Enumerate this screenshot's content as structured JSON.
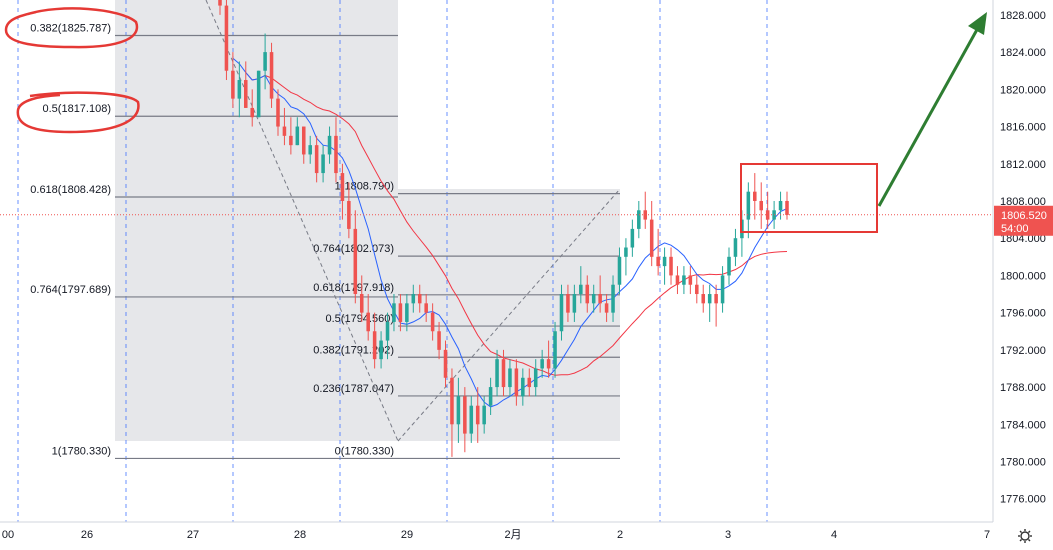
{
  "chart_data": {
    "type": "candlestick",
    "instrument_price_axis": {
      "ticks": [
        1828,
        1824,
        1820,
        1816,
        1812,
        1808,
        1804,
        1800,
        1796,
        1792,
        1788,
        1784,
        1780,
        1776
      ],
      "tick_labels": [
        "1828.000",
        "1824.000",
        "1820.000",
        "1816.000",
        "1812.000",
        "1808.000",
        "1804.000",
        "1800.000",
        "1796.000",
        "1792.000",
        "1788.000",
        "1784.000",
        "1780.000",
        "1776.000"
      ],
      "range": [
        1773.5,
        1829.6
      ]
    },
    "time_axis": {
      "labels": [
        "00",
        "26",
        "27",
        "28",
        "29",
        "2月",
        "2",
        "3",
        "4",
        "7"
      ],
      "session_lines": [
        "26",
        "27",
        "28",
        "29",
        "2月",
        "2",
        "3"
      ]
    },
    "current_price": {
      "value": 1806.52,
      "label": "1806.520",
      "countdown": "54:00"
    },
    "fib_left": {
      "levels": [
        {
          "ratio": "0.382",
          "price": 1825.787,
          "label": "0.382(1825.787)"
        },
        {
          "ratio": "0.5",
          "price": 1817.108,
          "label": "0.5(1817.108)"
        },
        {
          "ratio": "0.618",
          "price": 1808.428,
          "label": "0.618(1808.428)"
        },
        {
          "ratio": "0.764",
          "price": 1797.689,
          "label": "0.764(1797.689)"
        },
        {
          "ratio": "1",
          "price": 1780.33,
          "label": "1(1780.330)"
        }
      ]
    },
    "fib_right": {
      "levels": [
        {
          "ratio": "1",
          "price": 1808.79,
          "label": "1(1808.790)"
        },
        {
          "ratio": "0.764",
          "price": 1802.073,
          "label": "0.764(1802.073)"
        },
        {
          "ratio": "0.618",
          "price": 1797.918,
          "label": "0.618(1797.918)"
        },
        {
          "ratio": "0.5",
          "price": 1794.56,
          "label": "0.5(1794.560)"
        },
        {
          "ratio": "0.382",
          "price": 1791.202,
          "label": "0.382(1791.202)"
        },
        {
          "ratio": "0.236",
          "price": 1787.047,
          "label": "0.236(1787.047)"
        },
        {
          "ratio": "0",
          "price": 1780.33,
          "label": "0(1780.330)"
        }
      ]
    },
    "candles": [
      [
        1831,
        1832,
        1828,
        1829
      ],
      [
        1829,
        1830,
        1821,
        1822
      ],
      [
        1822,
        1824,
        1818,
        1819
      ],
      [
        1819,
        1823,
        1817,
        1821
      ],
      [
        1821,
        1823,
        1818,
        1818
      ],
      [
        1818,
        1820,
        1816,
        1817
      ],
      [
        1817,
        1822,
        1817,
        1822
      ],
      [
        1822,
        1826,
        1820,
        1824
      ],
      [
        1824,
        1825,
        1818,
        1819
      ],
      [
        1819,
        1820,
        1815,
        1816
      ],
      [
        1816,
        1818,
        1814,
        1815
      ],
      [
        1815,
        1817,
        1813,
        1814
      ],
      [
        1814,
        1817,
        1814,
        1816
      ],
      [
        1816,
        1816,
        1812,
        1813
      ],
      [
        1813,
        1815,
        1812,
        1814
      ],
      [
        1814,
        1815,
        1810,
        1811
      ],
      [
        1811,
        1814,
        1810,
        1813
      ],
      [
        1813,
        1816,
        1812,
        1815
      ],
      [
        1815,
        1817,
        1810,
        1811
      ],
      [
        1811,
        1812,
        1806,
        1808
      ],
      [
        1808,
        1810,
        1804,
        1805
      ],
      [
        1805,
        1807,
        1797,
        1798
      ],
      [
        1798,
        1800,
        1795,
        1796
      ],
      [
        1796,
        1798,
        1793,
        1794
      ],
      [
        1794,
        1796,
        1790,
        1791
      ],
      [
        1791,
        1794,
        1790,
        1793
      ],
      [
        1793,
        1796,
        1791,
        1795
      ],
      [
        1795,
        1798,
        1794,
        1797
      ],
      [
        1797,
        1798,
        1794,
        1795
      ],
      [
        1795,
        1798,
        1794,
        1797
      ],
      [
        1797,
        1799,
        1796,
        1798
      ],
      [
        1798,
        1799,
        1796,
        1797
      ],
      [
        1797,
        1798,
        1795,
        1796
      ],
      [
        1796,
        1797,
        1793,
        1794
      ],
      [
        1794,
        1795,
        1791,
        1792
      ],
      [
        1792,
        1793,
        1788,
        1789
      ],
      [
        1789,
        1790,
        1780.5,
        1784
      ],
      [
        1784,
        1789,
        1782,
        1787
      ],
      [
        1787,
        1788,
        1781,
        1783
      ],
      [
        1783,
        1787,
        1782,
        1786
      ],
      [
        1786,
        1788,
        1782,
        1784
      ],
      [
        1784,
        1787,
        1783,
        1786
      ],
      [
        1786,
        1789,
        1785,
        1788
      ],
      [
        1788,
        1792,
        1787,
        1791
      ],
      [
        1791,
        1792,
        1787,
        1788
      ],
      [
        1788,
        1791,
        1787,
        1790
      ],
      [
        1790,
        1791,
        1786,
        1787
      ],
      [
        1787,
        1790,
        1786,
        1789
      ],
      [
        1789,
        1790,
        1787,
        1788
      ],
      [
        1788,
        1791,
        1787,
        1790
      ],
      [
        1790,
        1792,
        1789,
        1791
      ],
      [
        1791,
        1793,
        1789,
        1790
      ],
      [
        1790,
        1795,
        1789,
        1794
      ],
      [
        1794,
        1799,
        1793,
        1798
      ],
      [
        1798,
        1799,
        1795,
        1796
      ],
      [
        1796,
        1799,
        1795,
        1798
      ],
      [
        1798,
        1801,
        1797,
        1799
      ],
      [
        1799,
        1800,
        1796,
        1797
      ],
      [
        1797,
        1799,
        1796,
        1798
      ],
      [
        1798,
        1800,
        1796,
        1797
      ],
      [
        1797,
        1798,
        1795,
        1796
      ],
      [
        1796,
        1800,
        1795,
        1799
      ],
      [
        1799,
        1803,
        1798,
        1802
      ],
      [
        1802,
        1804,
        1800,
        1803
      ],
      [
        1803,
        1806,
        1802,
        1805
      ],
      [
        1805,
        1808,
        1804,
        1807
      ],
      [
        1807,
        1809,
        1805,
        1806
      ],
      [
        1806,
        1808,
        1801,
        1802
      ],
      [
        1802,
        1805,
        1800,
        1801
      ],
      [
        1801,
        1803,
        1799,
        1802
      ],
      [
        1802,
        1803,
        1799,
        1800
      ],
      [
        1800,
        1801,
        1798,
        1799
      ],
      [
        1799,
        1801,
        1798,
        1800
      ],
      [
        1800,
        1801,
        1798,
        1799
      ],
      [
        1799,
        1800,
        1797,
        1798
      ],
      [
        1798,
        1799,
        1796,
        1797
      ],
      [
        1797,
        1799,
        1795,
        1798
      ],
      [
        1798,
        1799,
        1794.5,
        1797
      ],
      [
        1797,
        1801,
        1796,
        1800
      ],
      [
        1800,
        1803,
        1799,
        1802
      ],
      [
        1802,
        1805,
        1801,
        1804
      ],
      [
        1804,
        1807,
        1802,
        1806
      ],
      [
        1806,
        1810,
        1804,
        1809
      ],
      [
        1809,
        1811,
        1806,
        1808
      ],
      [
        1808,
        1810,
        1805,
        1807
      ],
      [
        1807,
        1809,
        1805,
        1806
      ],
      [
        1806,
        1808,
        1805,
        1807
      ],
      [
        1807,
        1809,
        1806,
        1808
      ],
      [
        1808,
        1809,
        1806,
        1806.5
      ]
    ],
    "candle_x_range": [
      220,
      787
    ],
    "annotations": {
      "boxed_region": {
        "from_candle": 82,
        "to_candle": 88
      },
      "arrow": "up-right"
    },
    "colors": {
      "up": "#26a69a",
      "down": "#ef5350",
      "ma_fast": "#2962ff",
      "ma_slow": "#f23645",
      "fib_line": "#787b86",
      "zone_fill": "#e6e7ea",
      "price_tag": "#ef5350",
      "box": "#e53935",
      "arrow": "#2e7d32",
      "circle": "#e53935"
    }
  }
}
